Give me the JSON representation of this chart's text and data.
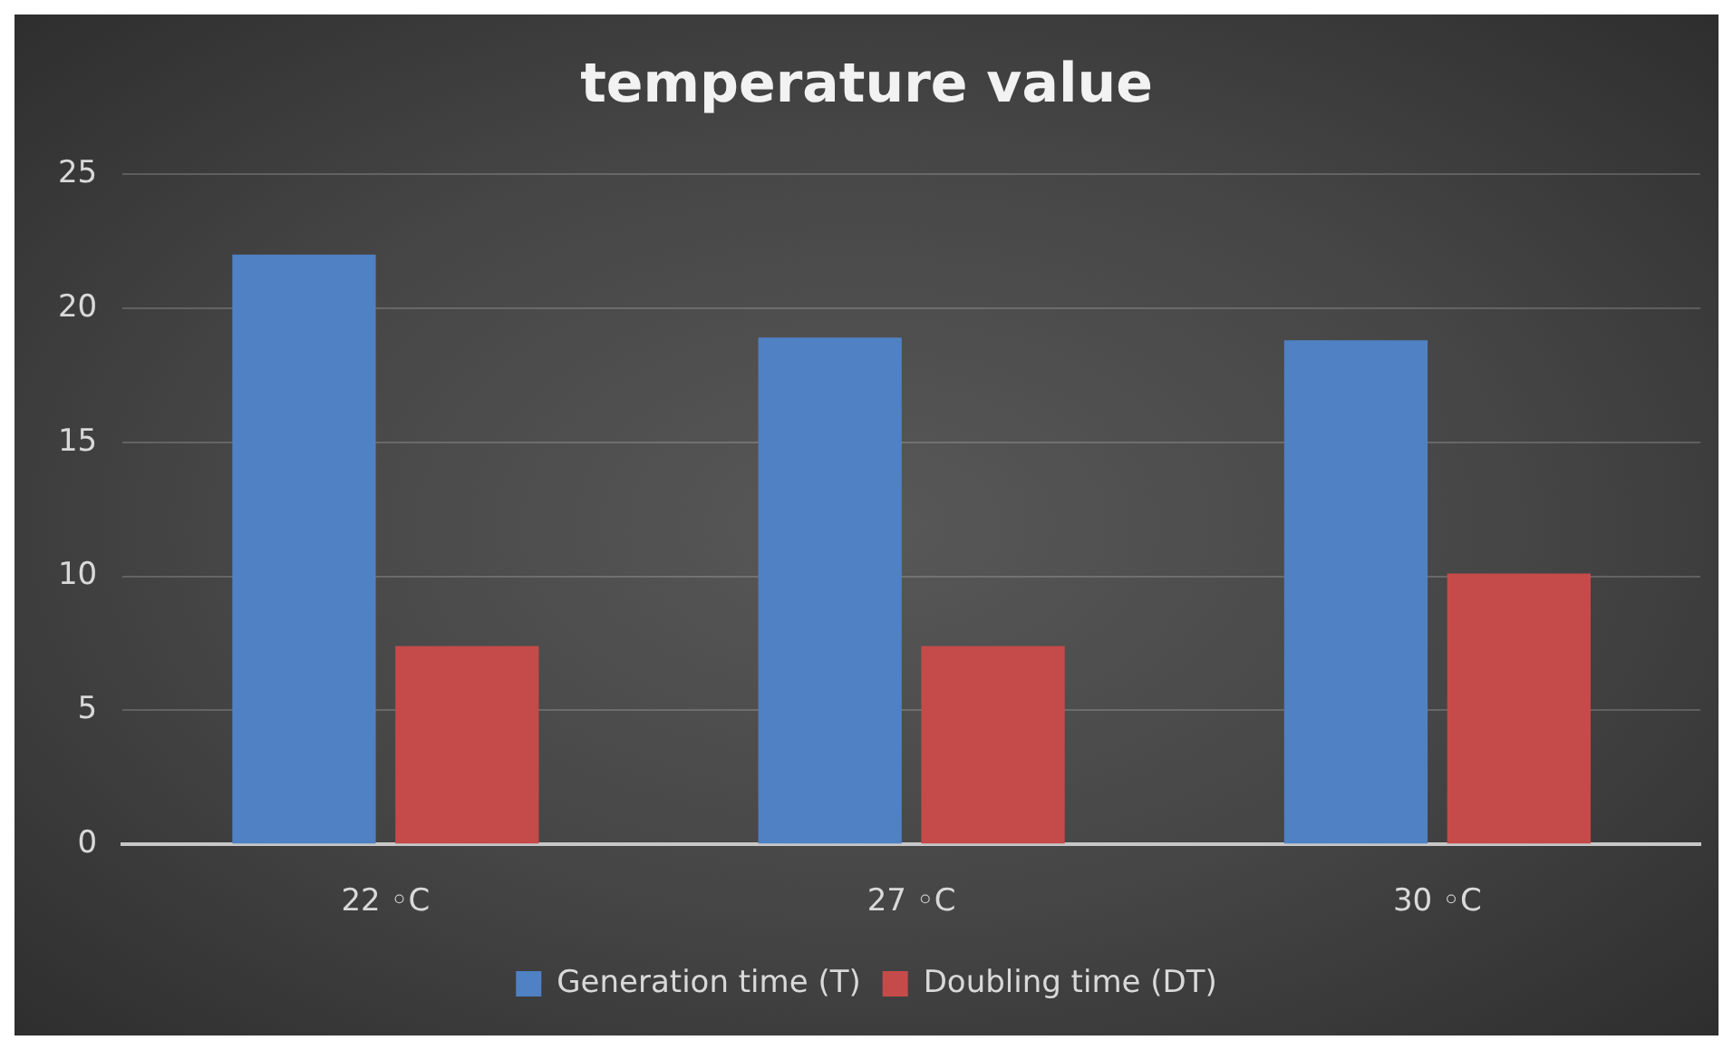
{
  "chart_data": {
    "type": "bar",
    "title": "temperature value",
    "categories": [
      "22 ◦C",
      "27 ◦C",
      "30 ◦C"
    ],
    "series": [
      {
        "name": "Generation time (T)",
        "color": "#4f81c4",
        "values": [
          22,
          18.9,
          18.8
        ]
      },
      {
        "name": "Doubling time (DT)",
        "color": "#c44b4a",
        "values": [
          7.4,
          7.4,
          10.1
        ]
      }
    ],
    "ylim": [
      0,
      25
    ],
    "yticks": [
      0,
      5,
      10,
      15,
      20,
      25
    ],
    "grid": "y",
    "legend": "bottom"
  }
}
